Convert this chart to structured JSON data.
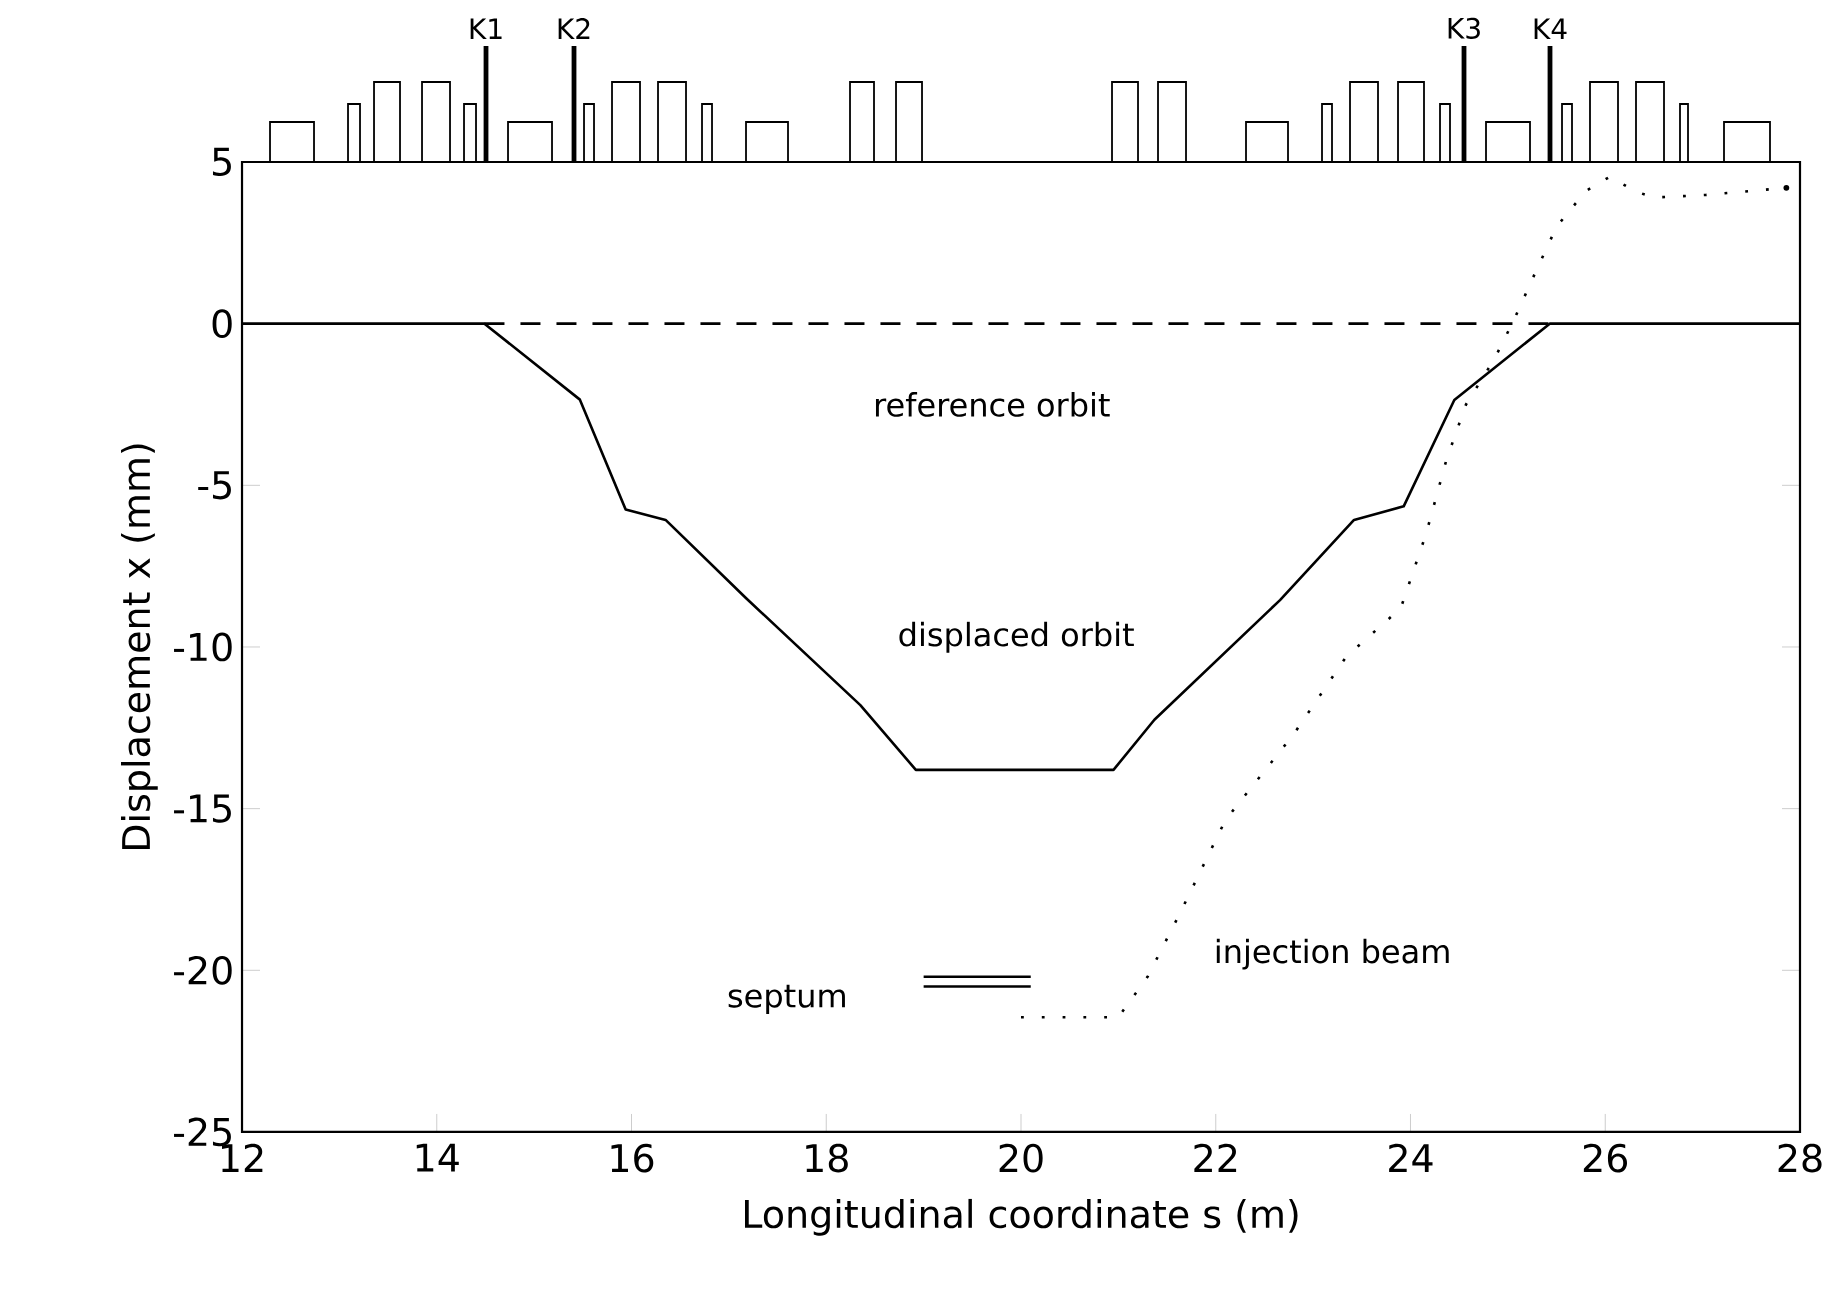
{
  "chart_data": {
    "type": "line",
    "xlabel": "Longitudinal coordinate s (m)",
    "ylabel": "Displacement x (mm)",
    "xlim": [
      12,
      28
    ],
    "ylim": [
      -25,
      5
    ],
    "xticks": [
      12,
      14,
      16,
      18,
      20,
      22,
      24,
      26,
      28
    ],
    "yticks": [
      -25,
      -20,
      -15,
      -10,
      -5,
      0,
      5
    ],
    "annotations": [
      "K1",
      "K2",
      "K3",
      "K4"
    ],
    "series": [
      {
        "name": "reference orbit",
        "color": "#000000",
        "line_style": "dashed",
        "x": [
          14.49,
          25.43
        ],
        "values": [
          0,
          0
        ]
      },
      {
        "name": "displaced orbit",
        "color": "#000000",
        "line_style": "solid",
        "x": [
          12,
          14.49,
          15.47,
          15.94,
          16.35,
          17.18,
          18.35,
          18.92,
          20.95,
          21.37,
          22.66,
          23.42,
          23.93,
          24.45,
          25.43,
          28
        ],
        "values": [
          0,
          0,
          -2.35,
          -5.75,
          -6.07,
          -8.5,
          -11.8,
          -13.8,
          -13.8,
          -12.25,
          -8.55,
          -6.07,
          -5.65,
          -2.36,
          0,
          0
        ]
      },
      {
        "name": "injection beam",
        "color": "#000000",
        "line_style": "dotted",
        "x": [
          20.0,
          21.0,
          21.3,
          21.63,
          22.1,
          22.8,
          23.34,
          23.9,
          24.16,
          24.37,
          24.57,
          24.86,
          25.06,
          25.27,
          25.5,
          25.8,
          26.05,
          26.3,
          26.5,
          27.03,
          27.86
        ],
        "values": [
          -21.45,
          -21.45,
          -20.2,
          -18.25,
          -15.35,
          -12.7,
          -10.3,
          -8.8,
          -6.5,
          -4.2,
          -2.5,
          -1.1,
          0.1,
          1.5,
          3.0,
          4.1,
          4.55,
          4.1,
          3.9,
          3.98,
          4.2
        ]
      },
      {
        "name": "septum",
        "color": "#000000",
        "line_style": "solid",
        "x": [
          19.0,
          20.1
        ],
        "values": [
          -20.2,
          -20.2
        ]
      },
      {
        "color": "#000000",
        "line_style": "solid",
        "x": [
          19.0,
          20.1
        ],
        "values": [
          -20.5,
          -20.5
        ]
      }
    ]
  }
}
